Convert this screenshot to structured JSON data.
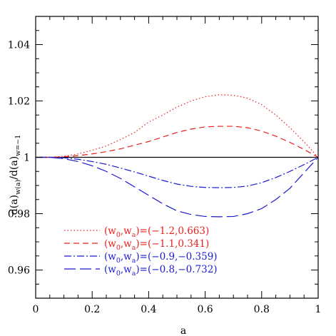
{
  "chart_data": {
    "type": "line",
    "title": "",
    "xlabel": "a",
    "ylabel": "d(a)w(a)/d(a)w=−1",
    "ylabel_parts": {
      "main": "d(a)",
      "sub1": "w(a)",
      "mid": "/d(a)",
      "sub2": "w=−1"
    },
    "xlim": [
      0,
      1
    ],
    "ylim": [
      0.95,
      1.05
    ],
    "x_ticks": [
      0,
      0.2,
      0.4,
      0.6,
      0.8,
      1
    ],
    "x_tick_labels": [
      "0",
      "0.2",
      "0.4",
      "0.6",
      "0.8",
      "1"
    ],
    "y_ticks": [
      0.96,
      0.98,
      1,
      1.02,
      1.04
    ],
    "y_tick_labels": [
      "0.96",
      "0.98",
      "1",
      "1.02",
      "1.04"
    ],
    "grid": false,
    "legend_position": "bottom-left",
    "reference_line": {
      "y": 1,
      "color": "#000000"
    },
    "series": [
      {
        "legend": {
          "w0": "−1.2",
          "wa": "0.663"
        },
        "color": "#e8211d",
        "dash": "dotted",
        "x": [
          0,
          0.05,
          0.1,
          0.15,
          0.2,
          0.25,
          0.3,
          0.35,
          0.4,
          0.45,
          0.5,
          0.55,
          0.6,
          0.65,
          0.7,
          0.75,
          0.8,
          0.85,
          0.9,
          0.95,
          1.0
        ],
        "y": [
          1.0,
          1.0,
          1.0004,
          1.0012,
          1.0025,
          1.004,
          1.0063,
          1.0088,
          1.0125,
          1.015,
          1.0178,
          1.02,
          1.0215,
          1.0222,
          1.022,
          1.021,
          1.0187,
          1.015,
          1.0105,
          1.0055,
          1.0
        ]
      },
      {
        "legend": {
          "w0": "−1.1",
          "wa": "0.341"
        },
        "color": "#e8211d",
        "dash": "dashed",
        "x": [
          0,
          0.05,
          0.1,
          0.15,
          0.2,
          0.25,
          0.3,
          0.35,
          0.4,
          0.45,
          0.5,
          0.55,
          0.6,
          0.65,
          0.7,
          0.75,
          0.8,
          0.85,
          0.9,
          0.95,
          1.0
        ],
        "y": [
          1.0,
          1.0,
          1.0002,
          1.0006,
          1.0012,
          1.002,
          1.003,
          1.0043,
          1.0056,
          1.0072,
          1.0088,
          1.01,
          1.0108,
          1.011,
          1.011,
          1.0105,
          1.0093,
          1.0075,
          1.0053,
          1.0028,
          1.0
        ]
      },
      {
        "legend": {
          "w0": "−0.9",
          "wa": "−0.359"
        },
        "color": "#1a1ad0",
        "dash": "dashdot",
        "x": [
          0,
          0.05,
          0.1,
          0.15,
          0.2,
          0.25,
          0.3,
          0.35,
          0.4,
          0.45,
          0.5,
          0.55,
          0.6,
          0.65,
          0.7,
          0.75,
          0.8,
          0.85,
          0.9,
          0.95,
          1.0
        ],
        "y": [
          1.0,
          1.0,
          0.9998,
          0.9993,
          0.9985,
          0.9975,
          0.9962,
          0.9948,
          0.9933,
          0.9918,
          0.9905,
          0.9897,
          0.9893,
          0.9892,
          0.9893,
          0.9898,
          0.991,
          0.9928,
          0.995,
          0.9974,
          1.0
        ]
      },
      {
        "legend": {
          "w0": "−0.8",
          "wa": "−0.732"
        },
        "color": "#1a1ad0",
        "dash": "longdash",
        "x": [
          0,
          0.05,
          0.1,
          0.15,
          0.2,
          0.25,
          0.3,
          0.35,
          0.4,
          0.45,
          0.5,
          0.55,
          0.6,
          0.65,
          0.7,
          0.75,
          0.8,
          0.85,
          0.9,
          0.95,
          1.0
        ],
        "y": [
          1.0,
          1.0,
          0.9995,
          0.9985,
          0.997,
          0.995,
          0.9925,
          0.9895,
          0.9865,
          0.9835,
          0.981,
          0.9797,
          0.979,
          0.9789,
          0.979,
          0.98,
          0.9818,
          0.985,
          0.989,
          0.9945,
          1.0
        ]
      }
    ]
  }
}
